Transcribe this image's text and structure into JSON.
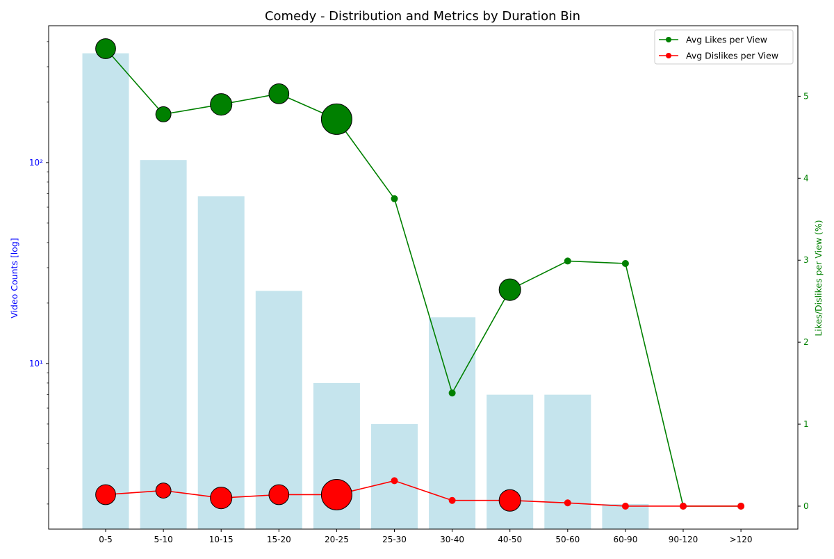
{
  "chart_data": {
    "type": "bar",
    "title": "Comedy - Distribution and Metrics by Duration Bin",
    "categories": [
      "0-5",
      "5-10",
      "10-15",
      "15-20",
      "20-25",
      "25-30",
      "30-40",
      "40-50",
      "50-60",
      "60-90",
      "90-120",
      ">120"
    ],
    "bars": {
      "values": [
        350,
        103,
        68,
        23,
        8,
        5,
        17,
        7,
        7,
        2,
        0,
        0
      ],
      "color": "#add8e6",
      "y_scale": "log",
      "ylabel": "Video Counts [log]",
      "ylim": [
        1.5,
        480
      ],
      "major_ticks": [
        {
          "value": 10,
          "label": "10¹"
        },
        {
          "value": 100,
          "label": "10²"
        }
      ],
      "minor_ticks": [
        2,
        3,
        4,
        5,
        6,
        7,
        8,
        9,
        20,
        30,
        40,
        50,
        60,
        70,
        80,
        90,
        200,
        300,
        400
      ]
    },
    "series": [
      {
        "name": "Avg Likes per View",
        "color": "#008000",
        "values": [
          5.58,
          4.78,
          4.9,
          5.03,
          4.72,
          3.75,
          1.38,
          2.64,
          2.99,
          2.96,
          0.0,
          0.0
        ],
        "marker_weights": [
          350,
          103,
          68,
          23,
          8,
          5,
          17,
          7,
          7,
          2,
          0,
          0
        ]
      },
      {
        "name": "Avg Dislikes per View",
        "color": "#ff0000",
        "values": [
          0.14,
          0.19,
          0.1,
          0.14,
          0.14,
          0.31,
          0.07,
          0.07,
          0.04,
          0.0,
          0.0,
          0.0
        ],
        "marker_weights": [
          350,
          103,
          68,
          23,
          8,
          5,
          17,
          7,
          7,
          2,
          0,
          0
        ]
      }
    ],
    "marker_sizes_relative": [
      0.55,
      0.35,
      0.62,
      0.55,
      1.0,
      0.25,
      0.25,
      0.62,
      0.25,
      0.25,
      0.25,
      0.25
    ],
    "y2": {
      "ylabel": "Likes/Dislikes per View (%)",
      "ylim": [
        -0.28,
        5.86
      ],
      "ticks": [
        0,
        1,
        2,
        3,
        4,
        5
      ]
    },
    "legend_position": "top-right",
    "grid": false
  }
}
